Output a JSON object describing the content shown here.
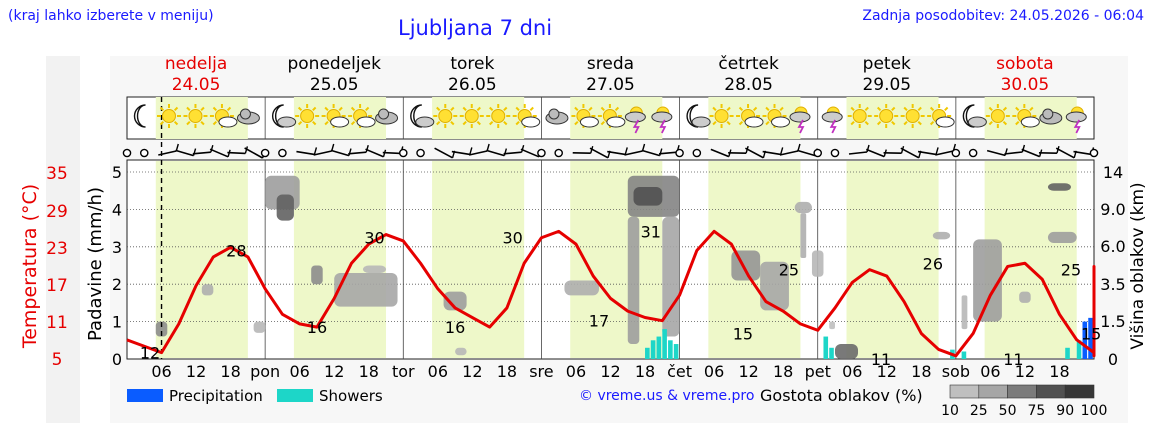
{
  "header": {
    "note": "(kraj lahko izberete v meniju)",
    "title": "Ljubljana 7 dni",
    "updated": "Zadnja posodobitev: 24.05.2026 - 06:04"
  },
  "credit": "© vreme.us & vreme.pro",
  "colors": {
    "temperature": "#e60000",
    "weekend_day": "#e60000",
    "day_band": "#eef8c9",
    "precipitation": "#0a5cff",
    "showers": "#1dd6c8",
    "text_blue": "#1a1aff"
  },
  "days": [
    {
      "name": "nedelja",
      "date": "24.05",
      "weekend": true,
      "short": ""
    },
    {
      "name": "ponedeljek",
      "date": "25.05",
      "weekend": false,
      "short": "pon"
    },
    {
      "name": "torek",
      "date": "26.05",
      "weekend": false,
      "short": "tor"
    },
    {
      "name": "sreda",
      "date": "27.05",
      "weekend": false,
      "short": "sre"
    },
    {
      "name": "četrtek",
      "date": "28.05",
      "weekend": false,
      "short": "čet"
    },
    {
      "name": "petek",
      "date": "29.05",
      "weekend": false,
      "short": "pet"
    },
    {
      "name": "sobota",
      "date": "30.05",
      "weekend": true,
      "short": "sob"
    }
  ],
  "hour_ticks": [
    "06",
    "12",
    "18"
  ],
  "weather_icons": [
    [
      "moon-icon",
      "sun-icon",
      "sun-icon",
      "partly-cloudy-icon",
      "cloud-icon"
    ],
    [
      "moon-cloud-icon",
      "sun-icon",
      "partly-cloudy-icon",
      "partly-cloudy-icon",
      "cloud-icon"
    ],
    [
      "moon-cloud-icon",
      "sun-icon",
      "sun-icon",
      "sun-icon",
      "partly-cloudy-icon"
    ],
    [
      "cloud-icon",
      "partly-cloudy-icon",
      "partly-cloudy-icon",
      "thunder-icon",
      "thunder-icon"
    ],
    [
      "moon-cloud-icon",
      "sun-icon",
      "partly-cloudy-icon",
      "partly-cloudy-icon",
      "thunder-icon"
    ],
    [
      "thunder-icon",
      "sun-icon",
      "sun-icon",
      "sun-icon",
      "partly-cloudy-icon"
    ],
    [
      "moon-cloud-icon",
      "sun-icon",
      "partly-cloudy-icon",
      "cloud-icon",
      "thunder-icon"
    ]
  ],
  "legend": {
    "precipitation": "Precipitation",
    "showers": "Showers",
    "cloud_density_label": "Gostota oblakov (%)",
    "cloud_density_steps": [
      "10",
      "25",
      "50",
      "75",
      "90",
      "100"
    ]
  },
  "chart_data": {
    "type": "line",
    "x_unit": "hours since 24.05 00:00",
    "x_range": [
      0,
      168
    ],
    "now_marker_hour": 6,
    "y_axes": {
      "temperature": {
        "label": "Temperatura (°C)",
        "ticks": [
          5,
          11,
          17,
          23,
          29,
          35
        ]
      },
      "precipitation": {
        "label": "Padavine (mm/h)",
        "ticks": [
          0,
          1,
          2,
          3,
          4,
          5
        ],
        "ylim": [
          0,
          5
        ]
      },
      "cloud_height": {
        "label": "Višina oblakov (km)",
        "ticks": [
          "0",
          "1.5",
          "3.5",
          "6.0",
          "9.0",
          "14"
        ]
      }
    },
    "temperature": {
      "name": "Temperatura (°C)",
      "points": [
        [
          0,
          14
        ],
        [
          3,
          13
        ],
        [
          6,
          12
        ],
        [
          9,
          16.5
        ],
        [
          12,
          22.5
        ],
        [
          15,
          27
        ],
        [
          18,
          28.5
        ],
        [
          21,
          27
        ],
        [
          24,
          22
        ],
        [
          27,
          18
        ],
        [
          30,
          16.5
        ],
        [
          33,
          16
        ],
        [
          36,
          20.5
        ],
        [
          39,
          26
        ],
        [
          42,
          29
        ],
        [
          45,
          30.5
        ],
        [
          48,
          29.5
        ],
        [
          51,
          26
        ],
        [
          54,
          22
        ],
        [
          57,
          19
        ],
        [
          60,
          17.5
        ],
        [
          63,
          16
        ],
        [
          66,
          19
        ],
        [
          69,
          26
        ],
        [
          72,
          30
        ],
        [
          75,
          31
        ],
        [
          78,
          29
        ],
        [
          81,
          24
        ],
        [
          84,
          20.5
        ],
        [
          87,
          18.5
        ],
        [
          90,
          17.5
        ],
        [
          93,
          17
        ],
        [
          96,
          21
        ],
        [
          99,
          28
        ],
        [
          102,
          31
        ],
        [
          105,
          29
        ],
        [
          108,
          24
        ],
        [
          111,
          20
        ],
        [
          114,
          18.5
        ],
        [
          117,
          16.5
        ],
        [
          120,
          15.5
        ],
        [
          123,
          19
        ],
        [
          126,
          23
        ],
        [
          129,
          25
        ],
        [
          132,
          24
        ],
        [
          135,
          20
        ],
        [
          138,
          15
        ],
        [
          141,
          12.5
        ],
        [
          144,
          11.5
        ],
        [
          147,
          15
        ],
        [
          150,
          21
        ],
        [
          153,
          25.5
        ],
        [
          156,
          26
        ],
        [
          159,
          23.5
        ],
        [
          162,
          18
        ],
        [
          165,
          14
        ],
        [
          168,
          12
        ],
        [
          171,
          11.5
        ],
        [
          174,
          18
        ],
        [
          177,
          23.5
        ],
        [
          180,
          25.5
        ],
        [
          183,
          24.5
        ],
        [
          186,
          20
        ],
        [
          189,
          16
        ]
      ],
      "labels": [
        {
          "hour": 4,
          "value": 12,
          "text": "12"
        },
        {
          "hour": 19,
          "value": 28,
          "text": "28"
        },
        {
          "hour": 33,
          "value": 16,
          "text": "16"
        },
        {
          "hour": 43,
          "value": 30,
          "text": "30"
        },
        {
          "hour": 57,
          "value": 16,
          "text": "16"
        },
        {
          "hour": 67,
          "value": 30,
          "text": "30"
        },
        {
          "hour": 82,
          "value": 17,
          "text": "17"
        },
        {
          "hour": 91,
          "value": 31,
          "text": "31"
        },
        {
          "hour": 107,
          "value": 15,
          "text": "15"
        },
        {
          "hour": 115,
          "value": 25,
          "text": "25"
        },
        {
          "hour": 131,
          "value": 11,
          "text": "11"
        },
        {
          "hour": 140,
          "value": 26,
          "text": "26"
        },
        {
          "hour": 154,
          "value": 11,
          "text": "11"
        },
        {
          "hour": 164,
          "value": 25,
          "text": "25"
        },
        {
          "hour": 167.5,
          "value": 15,
          "text": "15"
        }
      ]
    },
    "showers_mm_h": [
      [
        90,
        0.3
      ],
      [
        91,
        0.5
      ],
      [
        92,
        0.6
      ],
      [
        93,
        0.8
      ],
      [
        94,
        0.5
      ],
      [
        95,
        0.4
      ],
      [
        121,
        0.6
      ],
      [
        122,
        0.3
      ],
      [
        143,
        0.25
      ],
      [
        145,
        0.2
      ],
      [
        163,
        0.3
      ],
      [
        165,
        0.5
      ]
    ],
    "precipitation_mm_h": [
      [
        166,
        1.0
      ],
      [
        167,
        1.1
      ]
    ],
    "cloud_blobs": [
      {
        "x0": 5,
        "x1": 7,
        "lo": 0.6,
        "hi": 1.0,
        "density": 50
      },
      {
        "x0": 13,
        "x1": 15,
        "lo": 1.7,
        "hi": 2.0,
        "density": 30
      },
      {
        "x0": 22,
        "x1": 24,
        "lo": 0.7,
        "hi": 1.0,
        "density": 25
      },
      {
        "x0": 24,
        "x1": 30,
        "lo": 4.0,
        "hi": 4.9,
        "density": 40
      },
      {
        "x0": 26,
        "x1": 29,
        "lo": 3.7,
        "hi": 4.4,
        "density": 75
      },
      {
        "x0": 32,
        "x1": 34,
        "lo": 2.0,
        "hi": 2.5,
        "density": 50
      },
      {
        "x0": 36,
        "x1": 47,
        "lo": 1.4,
        "hi": 2.3,
        "density": 35
      },
      {
        "x0": 41,
        "x1": 45,
        "lo": 2.3,
        "hi": 2.5,
        "density": 25
      },
      {
        "x0": 55,
        "x1": 59,
        "lo": 1.3,
        "hi": 1.8,
        "density": 40
      },
      {
        "x0": 57,
        "x1": 59,
        "lo": 0.1,
        "hi": 0.3,
        "density": 25
      },
      {
        "x0": 76,
        "x1": 82,
        "lo": 1.7,
        "hi": 2.1,
        "density": 30
      },
      {
        "x0": 87,
        "x1": 96,
        "lo": 3.8,
        "hi": 4.9,
        "density": 55
      },
      {
        "x0": 88,
        "x1": 93,
        "lo": 4.1,
        "hi": 4.6,
        "density": 85
      },
      {
        "x0": 87,
        "x1": 89,
        "lo": 0.4,
        "hi": 3.8,
        "density": 40
      },
      {
        "x0": 93,
        "x1": 96,
        "lo": 0.6,
        "hi": 3.8,
        "density": 35
      },
      {
        "x0": 105,
        "x1": 110,
        "lo": 2.1,
        "hi": 2.9,
        "density": 45
      },
      {
        "x0": 110,
        "x1": 115,
        "lo": 1.3,
        "hi": 2.6,
        "density": 35
      },
      {
        "x0": 116,
        "x1": 119,
        "lo": 3.9,
        "hi": 4.2,
        "density": 30
      },
      {
        "x0": 117,
        "x1": 118,
        "lo": 2.7,
        "hi": 3.9,
        "density": 30
      },
      {
        "x0": 119,
        "x1": 121,
        "lo": 2.2,
        "hi": 2.9,
        "density": 25
      },
      {
        "x0": 122,
        "x1": 123,
        "lo": 0.8,
        "hi": 1.0,
        "density": 20
      },
      {
        "x0": 123,
        "x1": 127,
        "lo": 0.0,
        "hi": 0.4,
        "density": 70
      },
      {
        "x0": 140,
        "x1": 143,
        "lo": 3.2,
        "hi": 3.4,
        "density": 30
      },
      {
        "x0": 145,
        "x1": 146,
        "lo": 0.8,
        "hi": 1.7,
        "density": 25
      },
      {
        "x0": 147,
        "x1": 152,
        "lo": 1.0,
        "hi": 3.2,
        "density": 40
      },
      {
        "x0": 155,
        "x1": 157,
        "lo": 1.5,
        "hi": 1.8,
        "density": 30
      },
      {
        "x0": 160,
        "x1": 164,
        "lo": 4.5,
        "hi": 4.7,
        "density": 75
      },
      {
        "x0": 160,
        "x1": 165,
        "lo": 3.1,
        "hi": 3.4,
        "density": 40
      }
    ]
  }
}
